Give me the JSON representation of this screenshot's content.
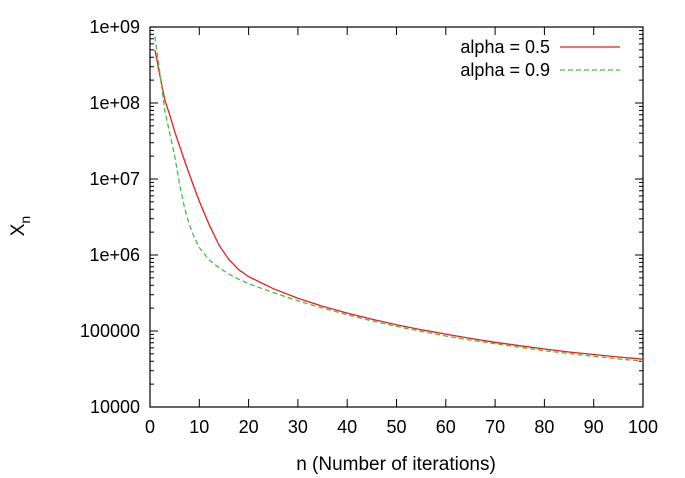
{
  "chart_data": {
    "type": "line",
    "xlabel": "n (Number of iterations)",
    "ylabel": "X",
    "ylabel_subscript": "n",
    "xlim": [
      0,
      100
    ],
    "ylim": [
      10000,
      1000000000
    ],
    "yscale": "log",
    "x_ticks": [
      0,
      10,
      20,
      30,
      40,
      50,
      60,
      70,
      80,
      90,
      100
    ],
    "x_tick_labels": [
      "0",
      "10",
      "20",
      "30",
      "40",
      "50",
      "60",
      "70",
      "80",
      "90",
      "100"
    ],
    "y_ticks": [
      10000,
      100000,
      1000000,
      10000000,
      100000000,
      1000000000
    ],
    "y_tick_labels": [
      "10000",
      "100000",
      "1e+06",
      "1e+07",
      "1e+08",
      "1e+09"
    ],
    "grid": false,
    "legend_position": "top-right",
    "series": [
      {
        "name": "alpha = 0.5",
        "color": "#e02020",
        "dash": "solid",
        "x": [
          1,
          2,
          3,
          4,
          5,
          6,
          7,
          8,
          9,
          10,
          12,
          14,
          16,
          18,
          20,
          25,
          30,
          35,
          40,
          45,
          50,
          55,
          60,
          65,
          70,
          75,
          80,
          85,
          90,
          95,
          100
        ],
        "y": [
          500000000,
          230000000,
          110000000,
          70000000,
          42000000,
          27000000,
          17500000,
          11500000,
          7600000,
          5100000,
          2500000,
          1350000,
          870000,
          640000,
          520000,
          360000,
          270000,
          212000,
          172000,
          143000,
          121000,
          104000,
          91000,
          80000,
          71000,
          64000,
          58000,
          53000,
          49000,
          45500,
          42500
        ]
      },
      {
        "name": "alpha = 0.9",
        "color": "#40c040",
        "dash": "dashed",
        "x": [
          1,
          2,
          3,
          4,
          5,
          6,
          7,
          8,
          9,
          10,
          12,
          14,
          16,
          18,
          20,
          25,
          30,
          35,
          40,
          45,
          50,
          55,
          60,
          65,
          70,
          75,
          80,
          85,
          90,
          95,
          100
        ],
        "y": [
          750000000,
          250000000,
          80000000,
          40000000,
          20000000,
          8500000,
          4200000,
          2500000,
          1700000,
          1250000,
          860000,
          680000,
          560000,
          480000,
          420000,
          320000,
          250000,
          200000,
          164000,
          136000,
          115000,
          99000,
          86000,
          76000,
          68000,
          61000,
          55000,
          50500,
          46500,
          43000,
          40000
        ]
      }
    ]
  }
}
